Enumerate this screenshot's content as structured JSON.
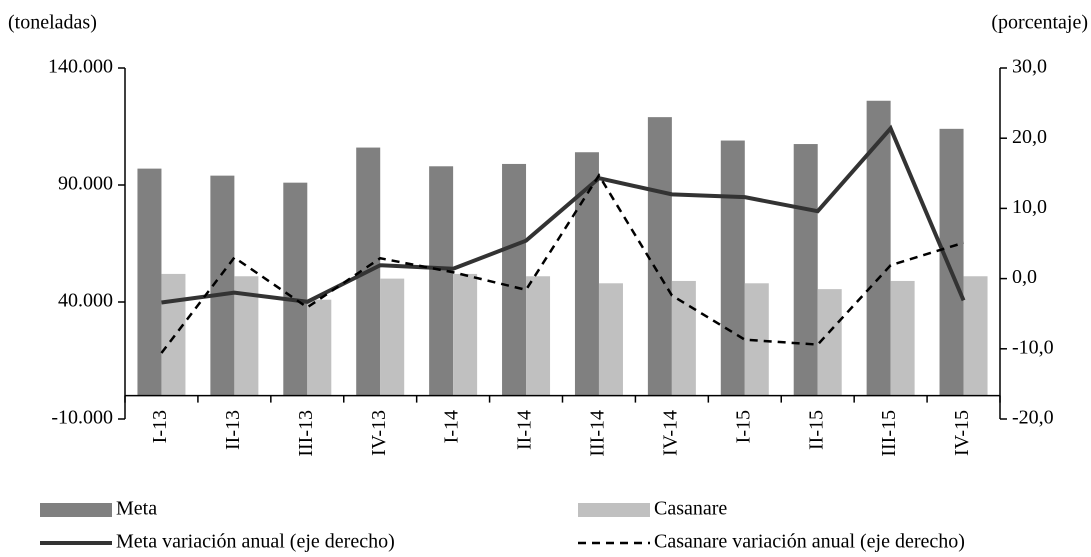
{
  "chart_data": {
    "type": "bar-line",
    "y_label": "(toneladas)",
    "y2_label": "(porcentaje)",
    "categories": [
      "I-13",
      "II-13",
      "III-13",
      "IV-13",
      "I-14",
      "II-14",
      "III-14",
      "IV-14",
      "I-15",
      "II-15",
      "III-15",
      "IV-15"
    ],
    "ylim": [
      -10000,
      140000
    ],
    "yticks": [
      {
        "value": -10000,
        "label": "-10.000"
      },
      {
        "value": 40000,
        "label": "40.000"
      },
      {
        "value": 90000,
        "label": "90.000"
      },
      {
        "value": 140000,
        "label": "140.000"
      }
    ],
    "y2lim": [
      -20,
      30
    ],
    "y2ticks": [
      {
        "value": -20,
        "label": "-20,0"
      },
      {
        "value": -10,
        "label": "-10,0"
      },
      {
        "value": 0,
        "label": "0,0"
      },
      {
        "value": 10,
        "label": "10,0"
      },
      {
        "value": 20,
        "label": "20,0"
      },
      {
        "value": 30,
        "label": "30,0"
      }
    ],
    "series": [
      {
        "name": "Meta",
        "kind": "bar",
        "color": "#808080",
        "values": [
          97000,
          94000,
          91000,
          106000,
          98000,
          99000,
          104000,
          119000,
          109000,
          107500,
          126000,
          114000
        ]
      },
      {
        "name": "Casanare",
        "kind": "bar",
        "color": "#c0c0c0",
        "values": [
          52000,
          51000,
          41000,
          50000,
          52000,
          51000,
          48000,
          49000,
          48000,
          45500,
          49000,
          51000
        ]
      },
      {
        "name": "Meta variación anual (eje derecho)",
        "kind": "line",
        "axis": "y2",
        "color": "#333333",
        "dash": "solid",
        "values": [
          -3.4,
          -2.0,
          -3.3,
          1.9,
          1.4,
          5.4,
          14.3,
          12.0,
          11.6,
          9.6,
          21.4,
          -3.1
        ]
      },
      {
        "name": "Casanare variación anual (eje derecho)",
        "kind": "line",
        "axis": "y2",
        "color": "#000000",
        "dash": "dashed",
        "values": [
          -10.6,
          3.0,
          -4.1,
          2.9,
          0.9,
          -1.6,
          14.7,
          -2.4,
          -8.7,
          -9.4,
          1.9,
          5.1
        ]
      }
    ]
  }
}
